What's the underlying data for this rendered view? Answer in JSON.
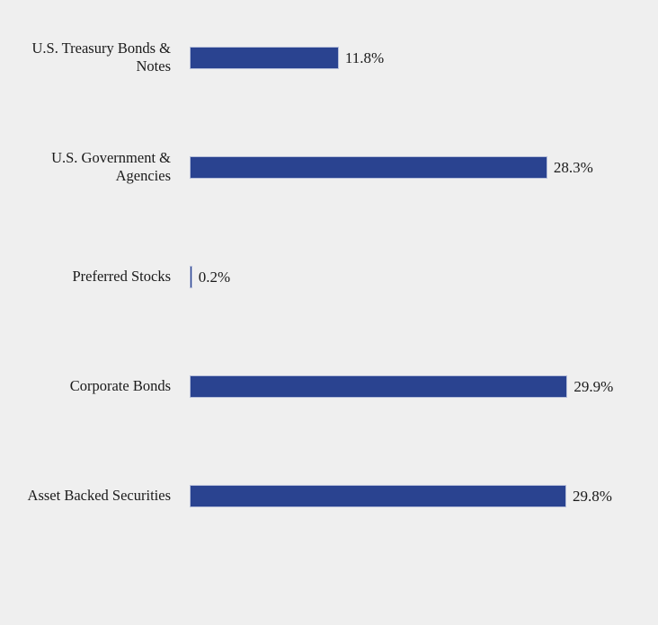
{
  "chart_data": {
    "type": "bar",
    "orientation": "horizontal",
    "categories": [
      "U.S. Treasury Bonds & Notes",
      "U.S. Government & Agencies",
      "Preferred Stocks",
      "Corporate Bonds",
      "Asset Backed Securities"
    ],
    "values": [
      11.8,
      28.3,
      0.2,
      29.9,
      29.8
    ],
    "value_labels": [
      "11.8%",
      "28.3%",
      "0.2%",
      "29.9%",
      "29.8%"
    ],
    "title": "",
    "xlabel": "",
    "ylabel": "",
    "xlim": [
      0,
      35
    ],
    "grid": false,
    "legend": "none",
    "colors": {
      "bar_fill": "#2a4390",
      "bar_border": "#b7bfda",
      "background": "#efefef",
      "text": "#1a1a1a"
    }
  }
}
